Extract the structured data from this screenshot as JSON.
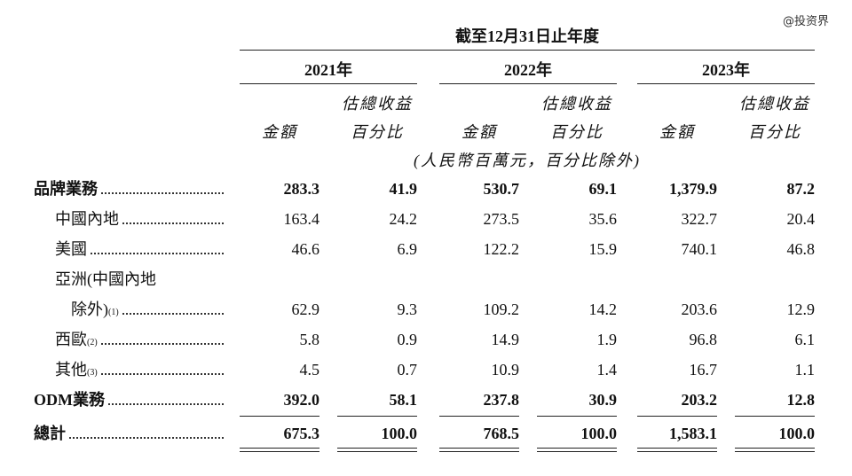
{
  "watermark": "@投资界",
  "table": {
    "period_header": "截至12月31日止年度",
    "years": [
      "2021年",
      "2022年",
      "2023年"
    ],
    "column_headers": {
      "amount": "金額",
      "percent": [
        "估總收益",
        "百分比"
      ]
    },
    "unit_note": "(人民幣百萬元，百分比除外)",
    "rows": [
      {
        "label": [
          "品牌業務"
        ],
        "bold": true,
        "cells": [
          "283.3",
          "41.9",
          "530.7",
          "69.1",
          "1,379.9",
          "87.2"
        ]
      },
      {
        "label": [
          "中國內地"
        ],
        "bold": false,
        "cells": [
          "163.4",
          "24.2",
          "273.5",
          "35.6",
          "322.7",
          "20.4"
        ]
      },
      {
        "label": [
          "美國"
        ],
        "bold": false,
        "cells": [
          "46.6",
          "6.9",
          "122.2",
          "15.9",
          "740.1",
          "46.8"
        ]
      },
      {
        "label": [
          "亞洲(中國內地",
          "除外)"
        ],
        "note": "(1)",
        "bold": false,
        "cells": [
          "62.9",
          "9.3",
          "109.2",
          "14.2",
          "203.6",
          "12.9"
        ]
      },
      {
        "label": [
          "西歐"
        ],
        "note": "(2)",
        "bold": false,
        "cells": [
          "5.8",
          "0.9",
          "14.9",
          "1.9",
          "96.8",
          "6.1"
        ]
      },
      {
        "label": [
          "其他"
        ],
        "note": "(3)",
        "bold": false,
        "cells": [
          "4.5",
          "0.7",
          "10.9",
          "1.4",
          "16.7",
          "1.1"
        ]
      },
      {
        "label": [
          "ODM業務"
        ],
        "bold": true,
        "cells": [
          "392.0",
          "58.1",
          "237.8",
          "30.9",
          "203.2",
          "12.8"
        ]
      },
      {
        "label": [
          "總計"
        ],
        "bold": true,
        "total": true,
        "cells": [
          "675.3",
          "100.0",
          "768.5",
          "100.0",
          "1,583.1",
          "100.0"
        ]
      }
    ]
  }
}
